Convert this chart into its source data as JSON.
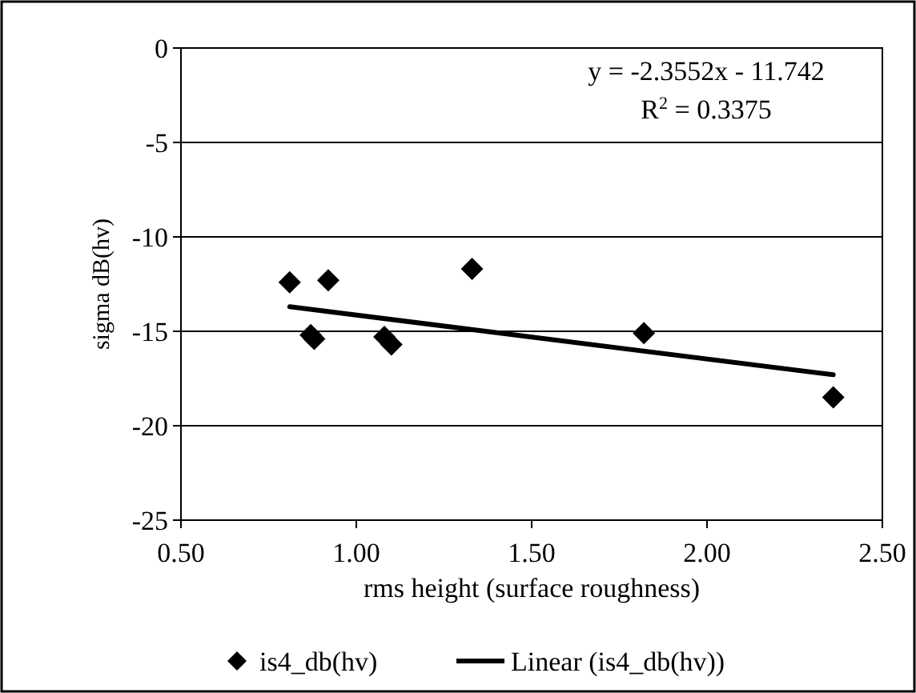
{
  "chart_data": {
    "type": "scatter",
    "xlabel": "rms height (surface roughness)",
    "ylabel": "sigma dB(hv)",
    "xlim": [
      0.5,
      2.5
    ],
    "xticks": [
      {
        "value": 0.5,
        "label": "0.50"
      },
      {
        "value": 1,
        "label": "1.00"
      },
      {
        "value": 1.5,
        "label": "1.50"
      },
      {
        "value": 2,
        "label": "2.00"
      },
      {
        "value": 2.5,
        "label": "2.50"
      }
    ],
    "ylim": [
      -25,
      0
    ],
    "yticks": [
      -25,
      -20,
      -15,
      -10,
      -5,
      0
    ],
    "grid": "y",
    "legend": "bottom",
    "annotations": [
      "y = -2.3552x - 11.742",
      "R$^{2}$ = 0.3375"
    ],
    "series": [
      {
        "name": "is4_db(hv)",
        "marker": "diamond",
        "color": "#000000",
        "x": [
          0.81,
          0.87,
          0.88,
          0.92,
          1.08,
          1.1,
          1.33,
          1.82,
          2.36
        ],
        "values": [
          -12.4,
          -15.2,
          -15.4,
          -12.3,
          -15.3,
          -15.7,
          -11.7,
          -15.1,
          -18.5
        ]
      },
      {
        "name": "Linear (is4_db(hv))",
        "type": "line",
        "line_style": "solid",
        "color": "#000000",
        "x": [
          0.81,
          2.36
        ],
        "values": [
          -13.7,
          -17.3
        ]
      }
    ]
  }
}
